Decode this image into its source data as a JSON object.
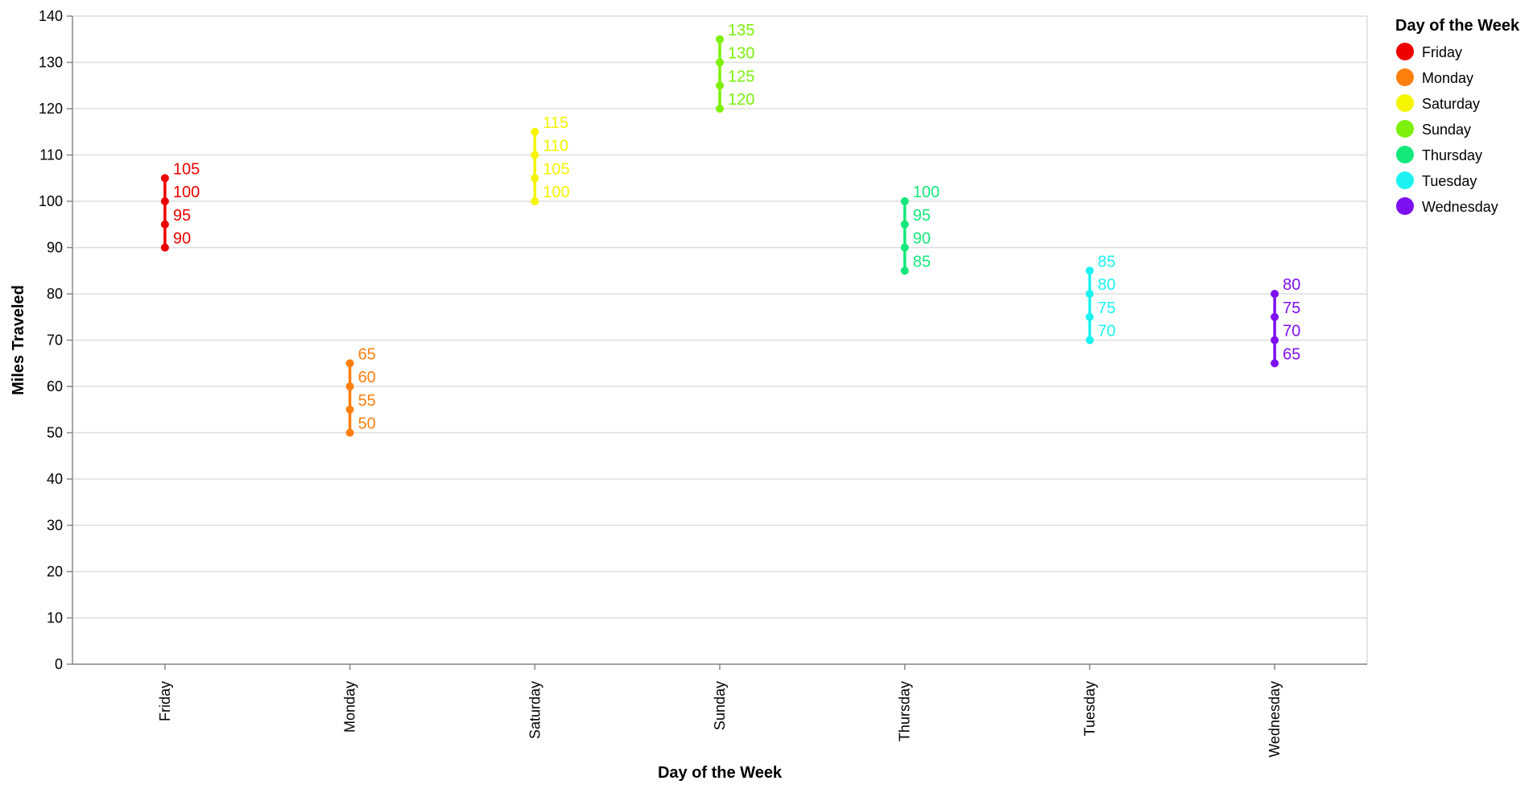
{
  "chart_data": {
    "type": "scatter",
    "xlabel": "Day of the Week",
    "ylabel": "Miles Traveled",
    "ylim": [
      0,
      140
    ],
    "y_ticks": [
      0,
      10,
      20,
      30,
      40,
      50,
      60,
      70,
      80,
      90,
      100,
      110,
      120,
      130,
      140
    ],
    "grid": true,
    "categories": [
      "Friday",
      "Monday",
      "Saturday",
      "Sunday",
      "Thursday",
      "Tuesday",
      "Wednesday"
    ],
    "legend": {
      "title": "Day of the Week",
      "placement": "right"
    },
    "series": [
      {
        "name": "Friday",
        "color": "#ee0000",
        "values": [
          90,
          95,
          100,
          105
        ]
      },
      {
        "name": "Monday",
        "color": "#ff7f0e",
        "values": [
          50,
          55,
          60,
          65
        ]
      },
      {
        "name": "Saturday",
        "color": "#f5f500",
        "values": [
          100,
          105,
          110,
          115
        ]
      },
      {
        "name": "Sunday",
        "color": "#7cf00a",
        "values": [
          120,
          125,
          130,
          135
        ]
      },
      {
        "name": "Thursday",
        "color": "#14e87a",
        "values": [
          85,
          90,
          95,
          100
        ]
      },
      {
        "name": "Tuesday",
        "color": "#1cf2f2",
        "values": [
          70,
          75,
          80,
          85
        ]
      },
      {
        "name": "Wednesday",
        "color": "#7e0ff0",
        "values": [
          65,
          70,
          75,
          80
        ]
      }
    ]
  }
}
